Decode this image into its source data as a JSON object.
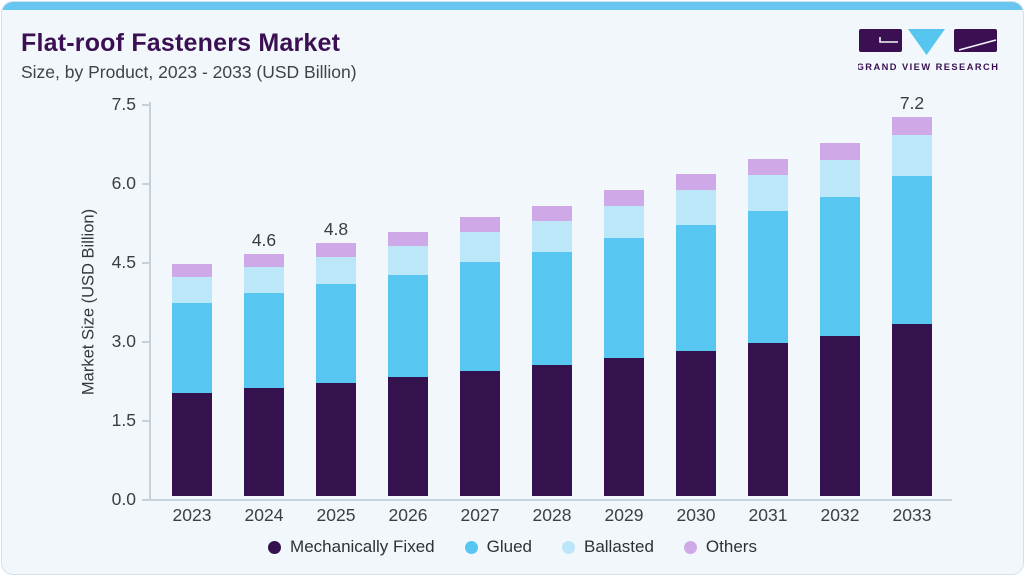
{
  "header": {
    "title": "Flat-roof Fasteners Market",
    "subtitle": "Size, by Product, 2023 - 2033 (USD Billion)",
    "logo_text": "GRAND VIEW RESEARCH"
  },
  "colors": {
    "accent_bar": "#67C5F0",
    "card_background": "#F2F7FB",
    "title_text": "#3B1053",
    "axis": "#C7D1D9",
    "logo_dark": "#3B1053",
    "logo_triangle": "#56C6F1"
  },
  "chart_data": {
    "type": "bar",
    "stacked": true,
    "title": "Flat-roof Fasteners Market",
    "subtitle": "Size, by Product, 2023 - 2033 (USD Billion)",
    "xlabel": "",
    "ylabel": "Market Size (USD Billion)",
    "ylim": [
      0,
      7.5
    ],
    "yticks": [
      {
        "value": 0.0,
        "label": "0.0"
      },
      {
        "value": 1.5,
        "label": "1.5"
      },
      {
        "value": 3.0,
        "label": "3.0"
      },
      {
        "value": 4.5,
        "label": "4.5"
      },
      {
        "value": 6.0,
        "label": "6.0"
      },
      {
        "value": 7.5,
        "label": "7.5"
      }
    ],
    "grid": false,
    "legend_position": "bottom",
    "categories": [
      "2023",
      "2024",
      "2025",
      "2026",
      "2027",
      "2028",
      "2029",
      "2030",
      "2031",
      "2032",
      "2033"
    ],
    "series": [
      {
        "name": "Mechanically Fixed",
        "color": "#33124E",
        "values": [
          1.95,
          2.05,
          2.15,
          2.25,
          2.38,
          2.48,
          2.62,
          2.76,
          2.9,
          3.04,
          3.26
        ]
      },
      {
        "name": "Glued",
        "color": "#57C7F2",
        "values": [
          1.72,
          1.8,
          1.87,
          1.95,
          2.07,
          2.15,
          2.27,
          2.39,
          2.51,
          2.63,
          2.82
        ]
      },
      {
        "name": "Ballasted",
        "color": "#BBE7F9",
        "values": [
          0.48,
          0.5,
          0.52,
          0.54,
          0.57,
          0.59,
          0.62,
          0.65,
          0.68,
          0.71,
          0.77
        ]
      },
      {
        "name": "Others",
        "color": "#CFA8E8",
        "values": [
          0.25,
          0.25,
          0.26,
          0.26,
          0.28,
          0.28,
          0.29,
          0.3,
          0.31,
          0.32,
          0.35
        ]
      }
    ],
    "totals": [
      4.4,
      4.6,
      4.8,
      5.0,
      5.3,
      5.5,
      5.8,
      6.1,
      6.4,
      6.7,
      7.2
    ],
    "bar_labels": {
      "2024": "4.6",
      "2025": "4.8",
      "2033": "7.2"
    }
  }
}
